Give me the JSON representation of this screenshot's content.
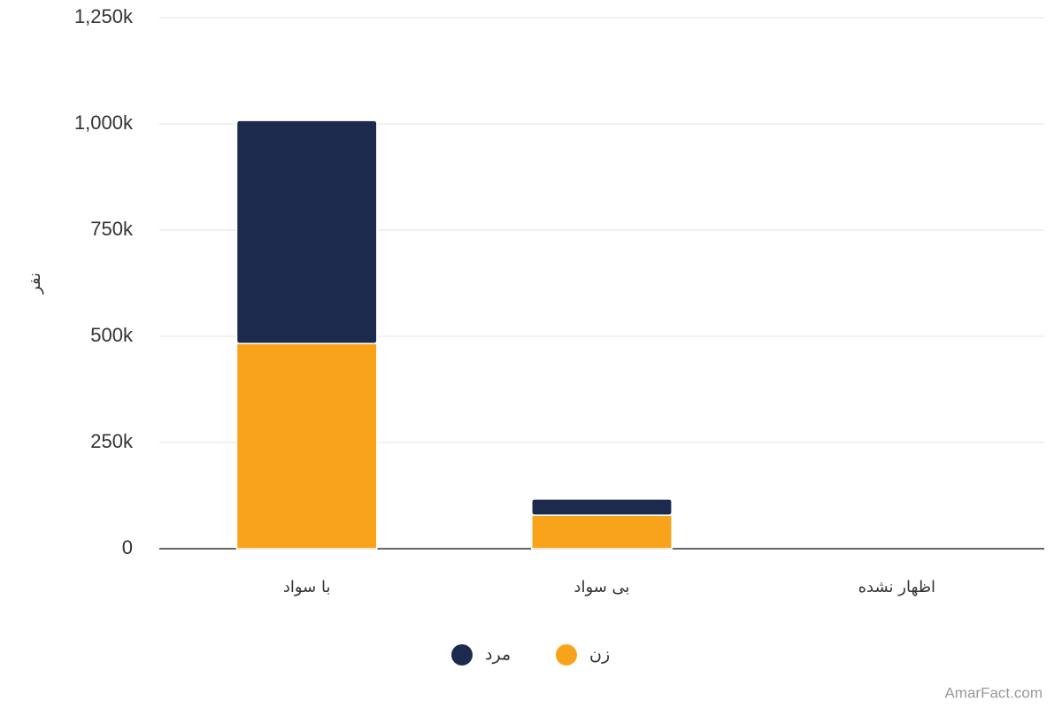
{
  "chart_data": {
    "type": "stacked-bar",
    "y_label": "نفر",
    "categories": [
      "با سواد",
      "بی سواد",
      "اظهار نشده"
    ],
    "series": [
      {
        "name": "زن",
        "color": "#f9a31a",
        "values": [
          483000,
          79000,
          0
        ]
      },
      {
        "name": "مرد",
        "color": "#1c2b4d",
        "values": [
          525000,
          38000,
          0
        ]
      }
    ],
    "ylim": [
      0,
      1250000
    ],
    "yticks": [
      0,
      {
        "value": 250000,
        "label": "250k"
      },
      {
        "value": 500000,
        "label": "500k"
      },
      {
        "value": 750000,
        "label": "750k"
      },
      {
        "value": 1000000,
        "label": "1,000k"
      },
      {
        "value": 1250000,
        "label": "1,250k"
      }
    ],
    "grid": true,
    "watermark": "AmarFact.com"
  }
}
